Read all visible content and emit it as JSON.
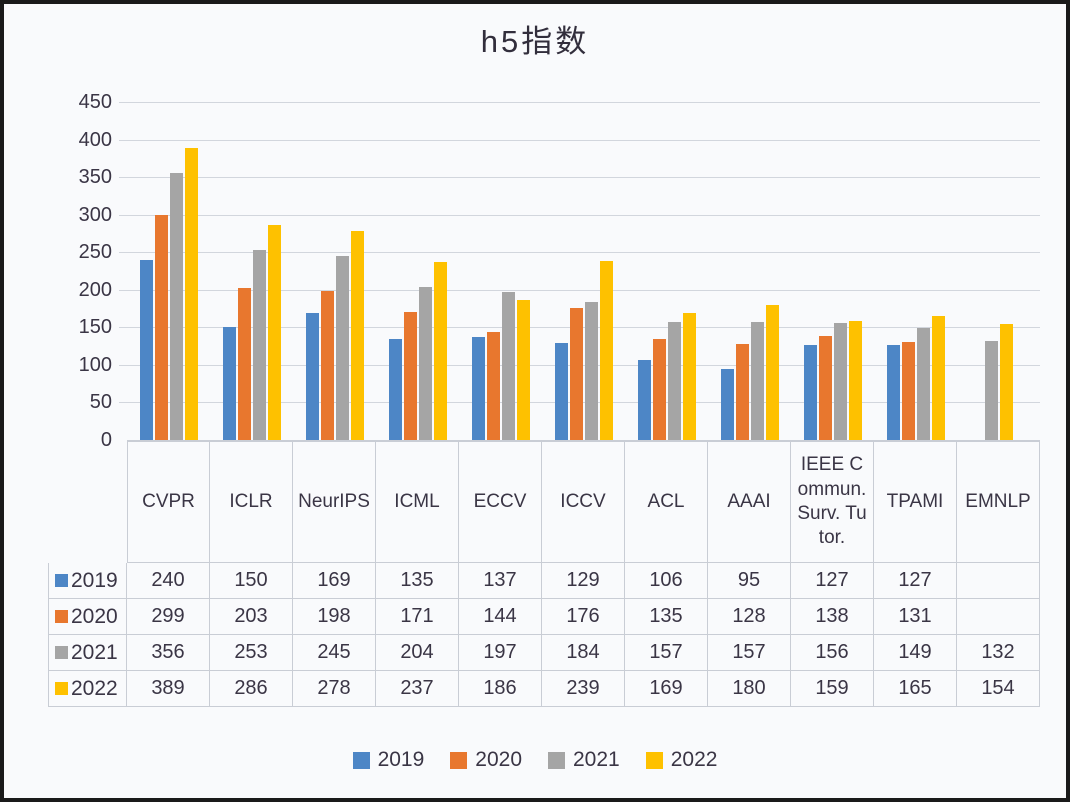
{
  "title": "h5指数",
  "chart_data": {
    "type": "bar",
    "title": "h5指数",
    "categories": [
      "CVPR",
      "ICLR",
      "NeurIPS",
      "ICML",
      "ECCV",
      "ICCV",
      "ACL",
      "AAAI",
      "IEEE Commun. Surv. Tutor.",
      "TPAMI",
      "EMNLP"
    ],
    "series": [
      {
        "name": "2019",
        "color": "#4d86c6",
        "values": [
          240,
          150,
          169,
          135,
          137,
          129,
          106,
          95,
          127,
          127,
          null
        ]
      },
      {
        "name": "2020",
        "color": "#e8772e",
        "values": [
          299,
          203,
          198,
          171,
          144,
          176,
          135,
          128,
          138,
          131,
          null
        ]
      },
      {
        "name": "2021",
        "color": "#a5a5a5",
        "values": [
          356,
          253,
          245,
          204,
          197,
          184,
          157,
          157,
          156,
          149,
          132
        ]
      },
      {
        "name": "2022",
        "color": "#fec100",
        "values": [
          389,
          286,
          278,
          237,
          186,
          239,
          169,
          180,
          159,
          165,
          154
        ]
      }
    ],
    "ylim": [
      0,
      450
    ],
    "yticks": [
      0,
      50,
      100,
      150,
      200,
      250,
      300,
      350,
      400,
      450
    ],
    "grid": true,
    "legend_position": "bottom",
    "has_data_table": true
  }
}
